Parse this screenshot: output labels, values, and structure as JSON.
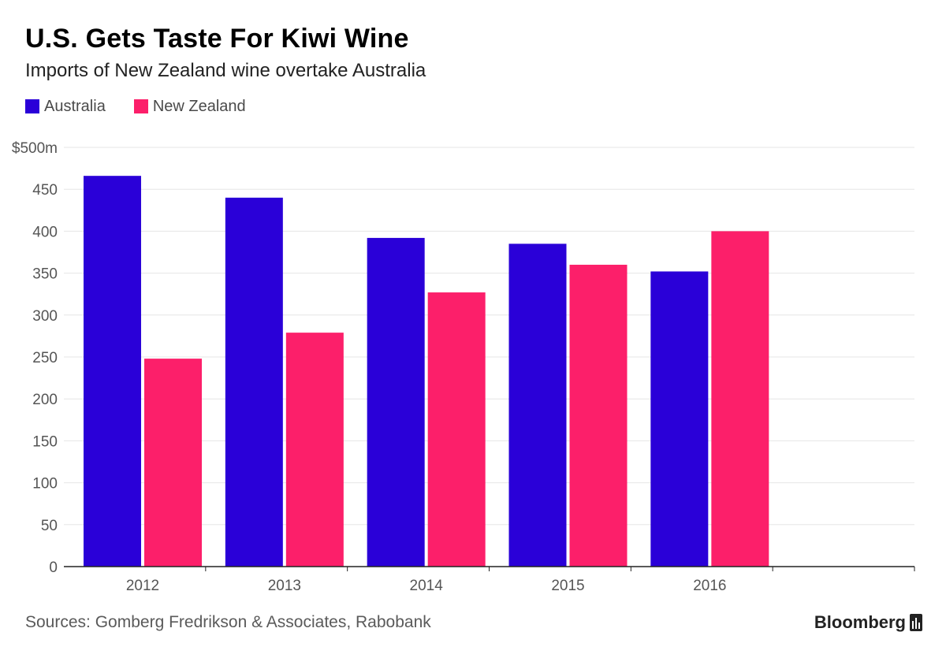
{
  "header": {
    "title": "U.S. Gets Taste For Kiwi Wine",
    "subtitle": "Imports of New Zealand wine overtake Australia"
  },
  "legend": [
    {
      "name": "Australia",
      "color": "#2a00d8"
    },
    {
      "name": "New Zealand",
      "color": "#fc1f6a"
    }
  ],
  "footer": {
    "source": "Sources: Gomberg Fredrikson & Associates, Rabobank",
    "brand": "Bloomberg",
    "brand_icon": "bloomberg-bars-icon"
  },
  "chart_data": {
    "type": "bar",
    "categories": [
      "2012",
      "2013",
      "2014",
      "2015",
      "2016",
      ""
    ],
    "series": [
      {
        "name": "Australia",
        "color": "#2a00d8",
        "values": [
          466,
          440,
          392,
          385,
          352,
          null
        ]
      },
      {
        "name": "New Zealand",
        "color": "#fc1f6a",
        "values": [
          248,
          279,
          327,
          360,
          400,
          null
        ]
      }
    ],
    "y_ticks": [
      "0",
      "50",
      "100",
      "150",
      "200",
      "250",
      "300",
      "350",
      "400",
      "450",
      "$500m"
    ],
    "ylim": [
      0,
      500
    ],
    "ylabel": "",
    "xlabel": "",
    "grid": true,
    "legend_position": "top-left"
  }
}
